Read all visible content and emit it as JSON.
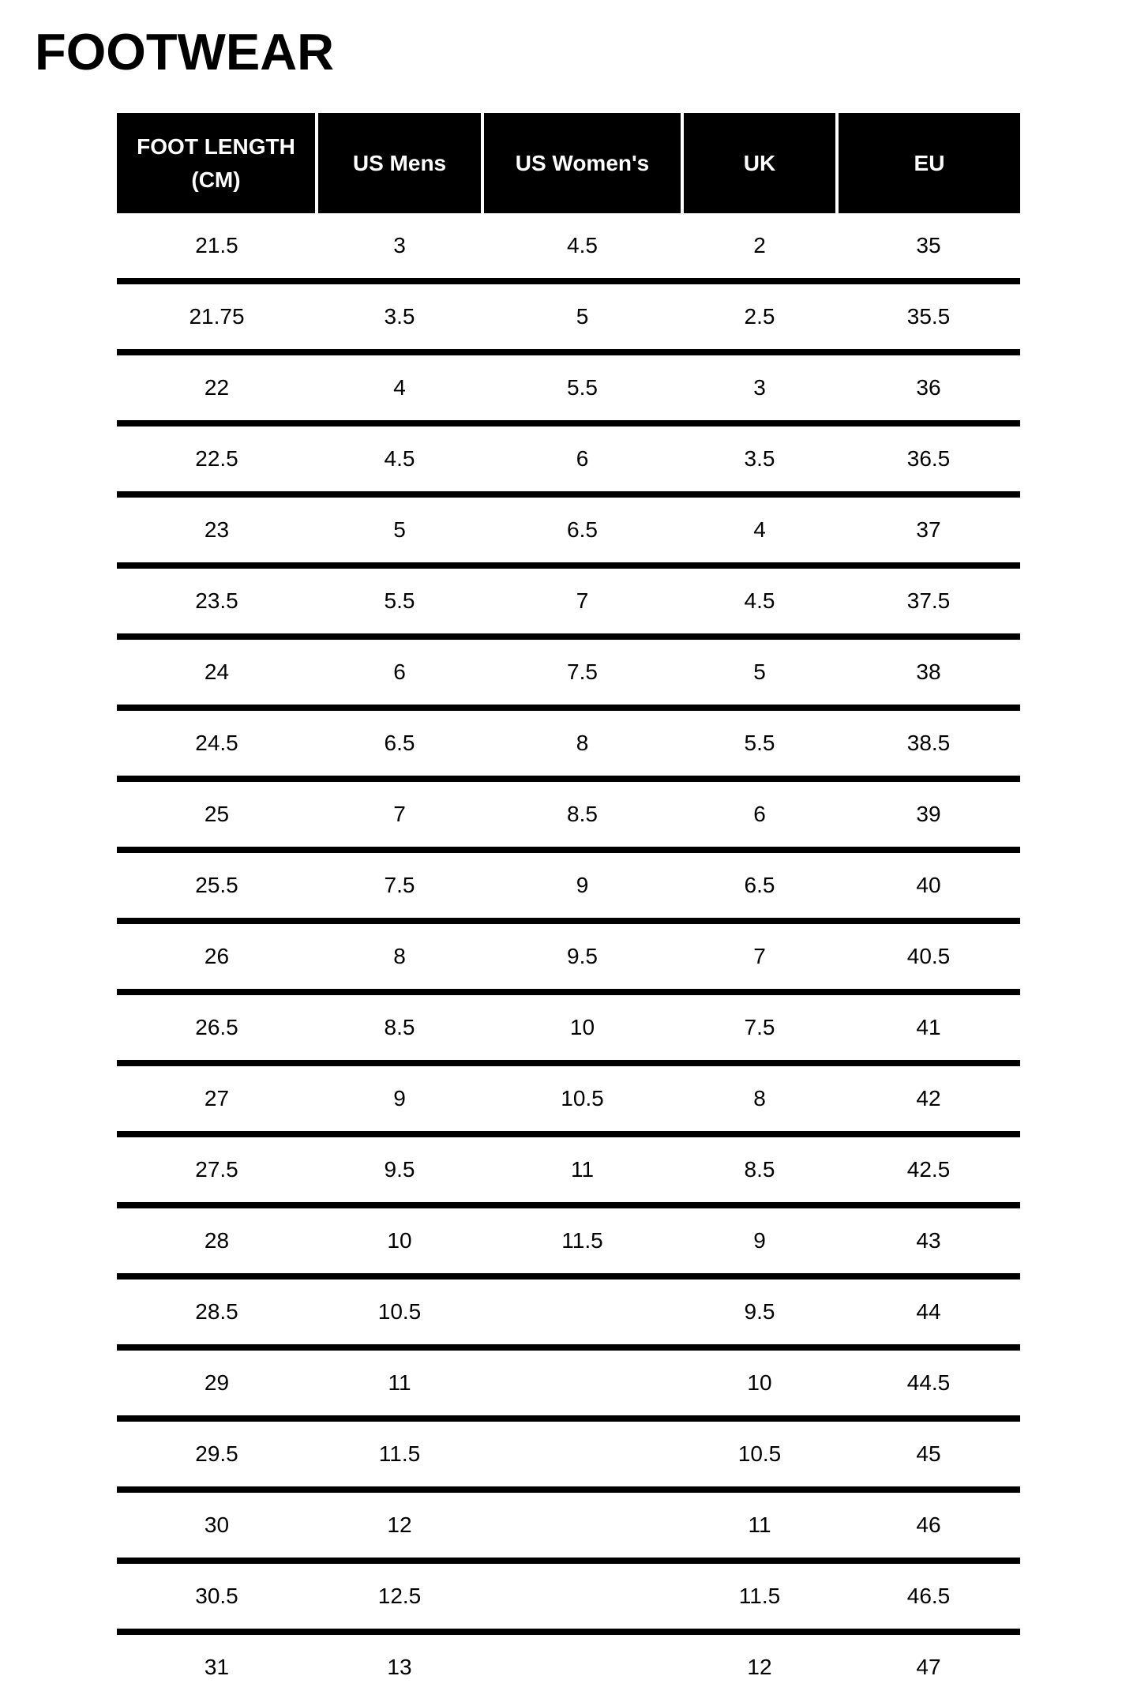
{
  "chart_data": {
    "type": "table",
    "title": "FOOTWEAR",
    "columns": [
      "FOOT LENGTH (CM)",
      "US Mens",
      "US Women's",
      "UK",
      "EU"
    ],
    "rows": [
      [
        "21.5",
        "3",
        "4.5",
        "2",
        "35"
      ],
      [
        "21.75",
        "3.5",
        "5",
        "2.5",
        "35.5"
      ],
      [
        "22",
        "4",
        "5.5",
        "3",
        "36"
      ],
      [
        "22.5",
        "4.5",
        "6",
        "3.5",
        "36.5"
      ],
      [
        "23",
        "5",
        "6.5",
        "4",
        "37"
      ],
      [
        "23.5",
        "5.5",
        "7",
        "4.5",
        "37.5"
      ],
      [
        "24",
        "6",
        "7.5",
        "5",
        "38"
      ],
      [
        "24.5",
        "6.5",
        "8",
        "5.5",
        "38.5"
      ],
      [
        "25",
        "7",
        "8.5",
        "6",
        "39"
      ],
      [
        "25.5",
        "7.5",
        "9",
        "6.5",
        "40"
      ],
      [
        "26",
        "8",
        "9.5",
        "7",
        "40.5"
      ],
      [
        "26.5",
        "8.5",
        "10",
        "7.5",
        "41"
      ],
      [
        "27",
        "9",
        "10.5",
        "8",
        "42"
      ],
      [
        "27.5",
        "9.5",
        "11",
        "8.5",
        "42.5"
      ],
      [
        "28",
        "10",
        "11.5",
        "9",
        "43"
      ],
      [
        "28.5",
        "10.5",
        "",
        "9.5",
        "44"
      ],
      [
        "29",
        "11",
        "",
        "10",
        "44.5"
      ],
      [
        "29.5",
        "11.5",
        "",
        "10.5",
        "45"
      ],
      [
        "30",
        "12",
        "",
        "11",
        "46"
      ],
      [
        "30.5",
        "12.5",
        "",
        "11.5",
        "46.5"
      ],
      [
        "31",
        "13",
        "",
        "12",
        "47"
      ]
    ],
    "layout": {
      "legend": "none",
      "grid": "horizontal-row-separators",
      "header_style": "black-filled-with-white-column-dividers"
    }
  },
  "colors": {
    "background": "#ffffff",
    "text": "#000000",
    "header_bg": "#000000",
    "header_text": "#ffffff",
    "row_divider": "#000000"
  }
}
